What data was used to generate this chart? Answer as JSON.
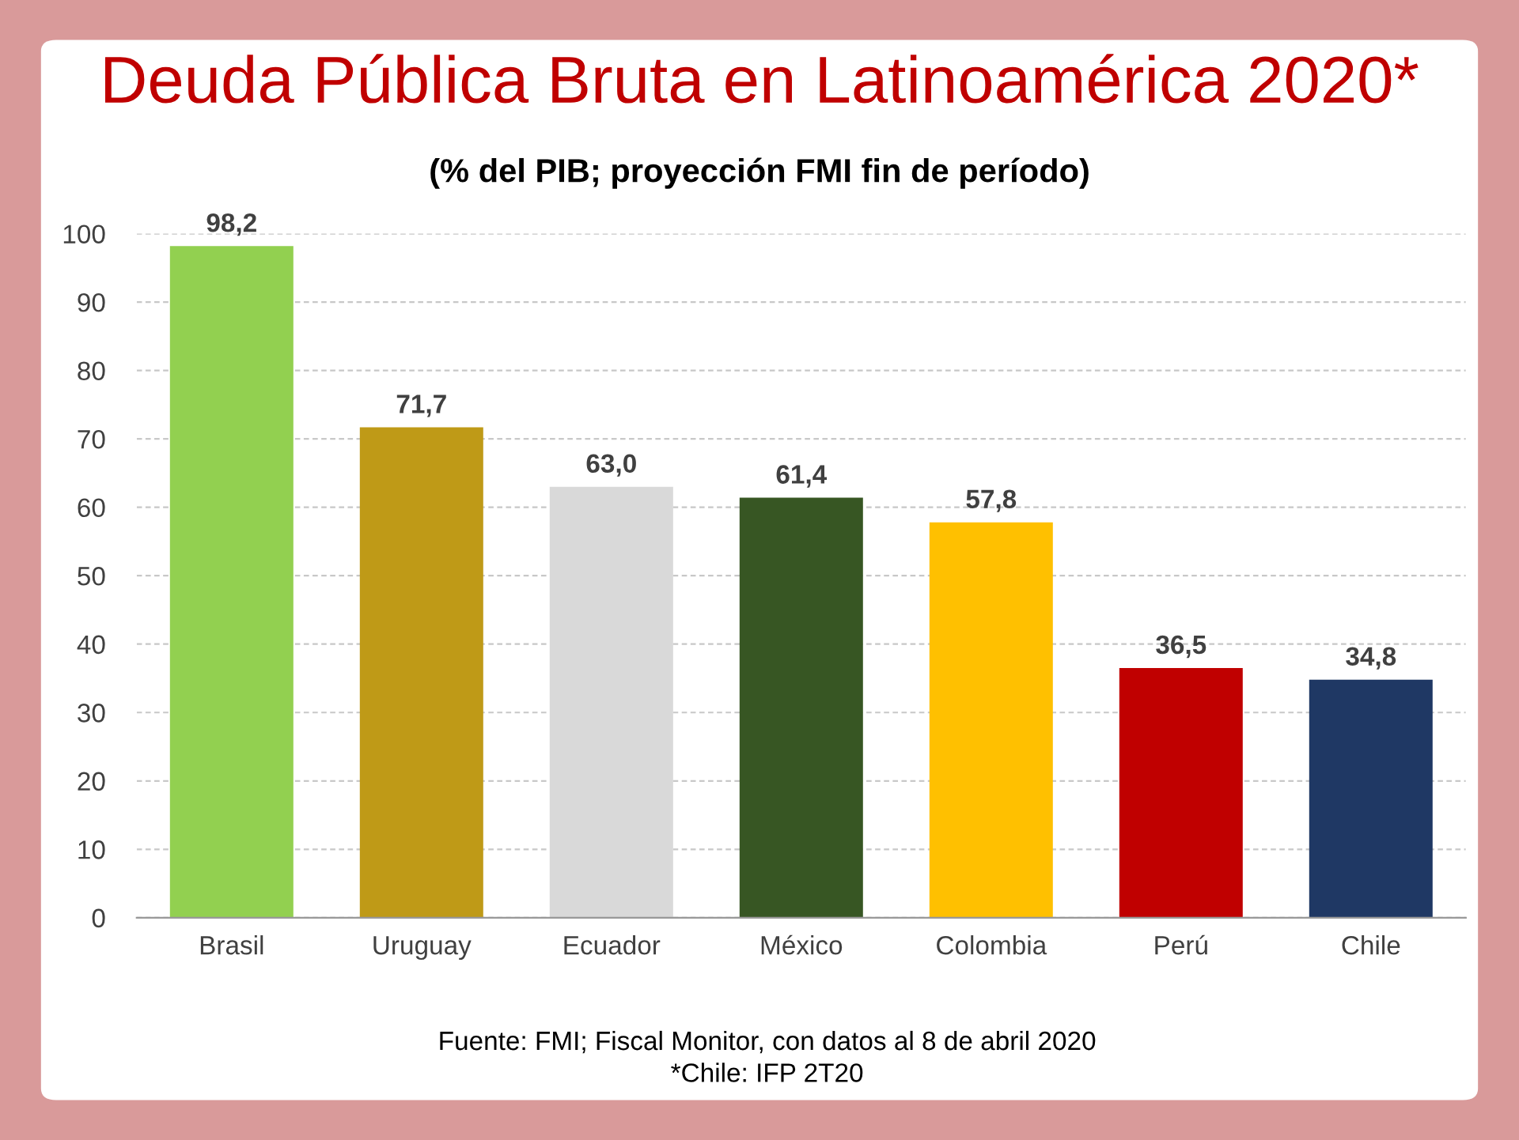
{
  "chart_data": {
    "type": "bar",
    "title": "Deuda Pública Bruta en Latinoamérica 2020*",
    "subtitle": "(% del PIB; proyección FMI fin de período)",
    "categories": [
      "Brasil",
      "Uruguay",
      "Ecuador",
      "México",
      "Colombia",
      "Perú",
      "Chile"
    ],
    "values": [
      98.2,
      71.7,
      63.0,
      61.4,
      57.8,
      36.5,
      34.8
    ],
    "value_labels": [
      "98,2",
      "71,7",
      "63,0",
      "61,4",
      "57,8",
      "36,5",
      "34,8"
    ],
    "colors": [
      "#92d050",
      "#bf9a17",
      "#d9d9d9",
      "#375623",
      "#ffc000",
      "#c00000",
      "#1f3864"
    ],
    "ylim": [
      0,
      100
    ],
    "yticks": [
      0,
      10,
      20,
      30,
      40,
      50,
      60,
      70,
      80,
      90,
      100
    ],
    "grid": "y",
    "annotations": [
      "Fuente: FMI; Fiscal Monitor, con datos al 8 de abril 2020",
      "*Chile: IFP 2T20"
    ]
  }
}
